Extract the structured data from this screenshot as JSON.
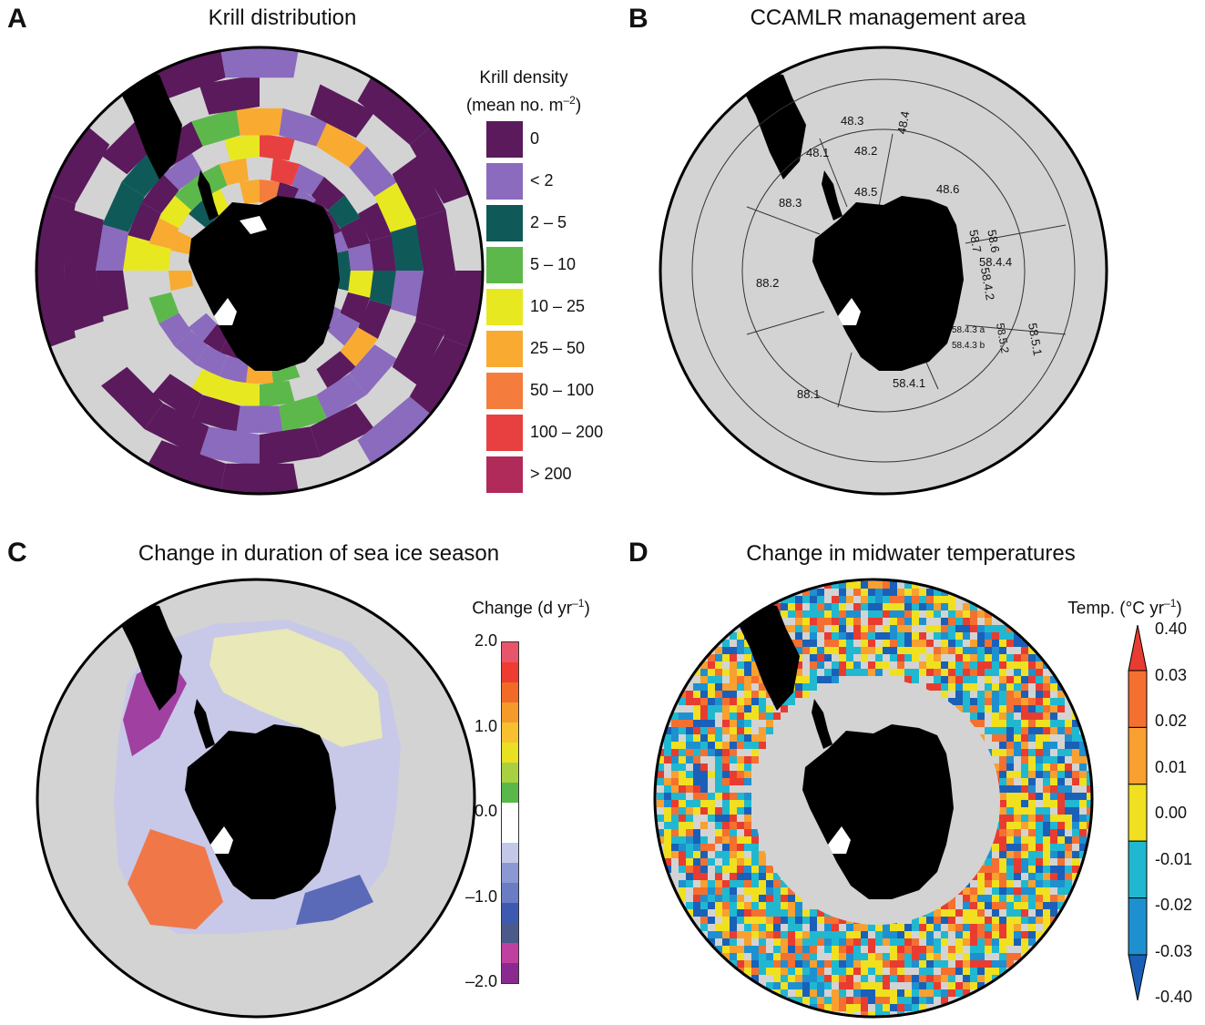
{
  "panels": {
    "a": {
      "letter": "A",
      "title": "Krill distribution"
    },
    "b": {
      "letter": "B",
      "title": "CCAMLR management area"
    },
    "c": {
      "letter": "C",
      "title": "Change in duration of sea ice season"
    },
    "d": {
      "letter": "D",
      "title": "Change in midwater temperatures"
    }
  },
  "krill_legend": {
    "title_line1": "Krill density",
    "title_line2": "(mean no. m",
    "title_sup": "–2",
    "title_close": ")",
    "items": [
      {
        "label": "0",
        "color": "#5a1a5c"
      },
      {
        "label": "< 2",
        "color": "#8a6bbd"
      },
      {
        "label": "2 – 5",
        "color": "#0f5a58"
      },
      {
        "label": "5 – 10",
        "color": "#5cb84a"
      },
      {
        "label": "10 – 25",
        "color": "#e8e820"
      },
      {
        "label": "25 – 50",
        "color": "#f8ab30"
      },
      {
        "label": "50 – 100",
        "color": "#f47c3c"
      },
      {
        "label": "100 – 200",
        "color": "#e84040"
      },
      {
        "label": "> 200",
        "color": "#b02a5a"
      }
    ]
  },
  "ccamlr_areas": [
    "48.3",
    "48.4",
    "48.1",
    "48.2",
    "48.5",
    "48.6",
    "88.3",
    "88.2",
    "88.1",
    "58.7",
    "58.6",
    "58.4.4",
    "58.4.2",
    "58.4.3 a",
    "58.4.3 b",
    "58.5.2",
    "58.5.1",
    "58.4.1"
  ],
  "sea_ice_colorbar": {
    "title": "Change (d yr",
    "title_sup": "–1",
    "title_close": ")",
    "ticks": [
      "2.0",
      "1.0",
      "0.0",
      "–1.0",
      "–2.0"
    ],
    "colors": [
      "#e8546a",
      "#ee3c30",
      "#f26a28",
      "#f59a2a",
      "#f6c030",
      "#e8e020",
      "#a8d040",
      "#5ab84a",
      "#ffffff",
      "#ffffff",
      "#c4c8e8",
      "#8c98d4",
      "#6a7cc4",
      "#3d5ab0",
      "#4a5a8a",
      "#c040a0",
      "#8a2a90"
    ]
  },
  "temp_colorbar": {
    "title": "Temp. (°C yr",
    "title_sup": "–1",
    "title_close": ")",
    "ticks": [
      "0.40",
      "0.03",
      "0.02",
      "0.01",
      "0.00",
      "-0.01",
      "-0.02",
      "-0.03",
      "-0.40"
    ],
    "colors": [
      "#e83c30",
      "#f47030",
      "#f8a030",
      "#f0e020",
      "#20b8d0",
      "#1e90d0",
      "#1a60b8"
    ]
  }
}
